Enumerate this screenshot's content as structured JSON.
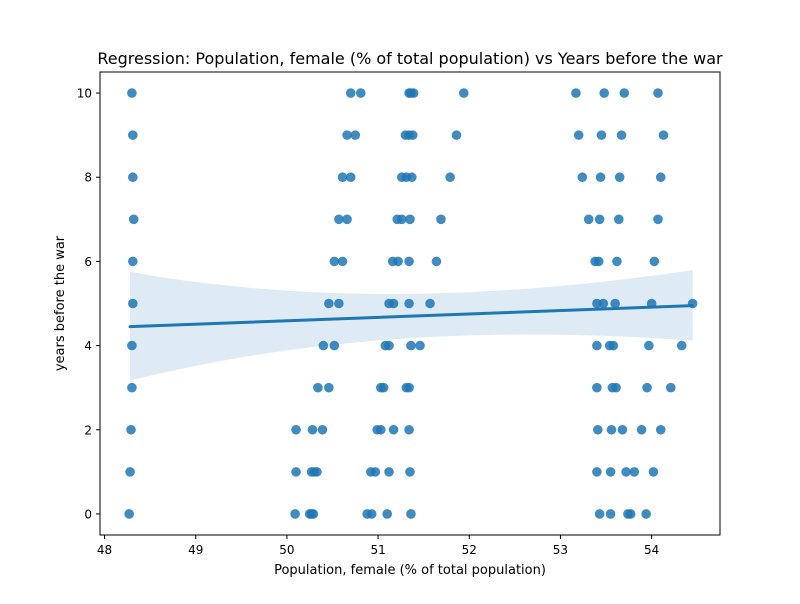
{
  "chart_data": {
    "type": "scatter",
    "title": "Regression: Population, female (% of total population) vs Years before the war",
    "xlabel": "Population, female (% of total population)",
    "ylabel": "years before the war",
    "xlim": [
      47.95,
      54.75
    ],
    "ylim": [
      -0.5,
      10.5
    ],
    "xticks": [
      48,
      49,
      50,
      51,
      52,
      53,
      54
    ],
    "yticks": [
      0,
      2,
      4,
      6,
      8,
      10
    ],
    "grid": false,
    "colors": {
      "points": "#1f77b4",
      "line": "#1f77b4",
      "band": "#1f77b4"
    },
    "regression": {
      "x": [
        48.28,
        54.45
      ],
      "y": [
        4.45,
        4.95
      ],
      "ci_upper": [
        5.75,
        5.98
      ],
      "ci_lower": [
        3.17,
        3.92
      ]
    },
    "points": [
      {
        "x": 48.3,
        "y": 10
      },
      {
        "x": 48.31,
        "y": 9
      },
      {
        "x": 48.31,
        "y": 8
      },
      {
        "x": 48.32,
        "y": 7
      },
      {
        "x": 48.31,
        "y": 6
      },
      {
        "x": 48.31,
        "y": 5
      },
      {
        "x": 48.3,
        "y": 4
      },
      {
        "x": 48.3,
        "y": 3
      },
      {
        "x": 48.29,
        "y": 2
      },
      {
        "x": 48.28,
        "y": 1
      },
      {
        "x": 48.27,
        "y": 0
      },
      {
        "x": 50.1,
        "y": 2
      },
      {
        "x": 50.28,
        "y": 2
      },
      {
        "x": 50.39,
        "y": 2
      },
      {
        "x": 50.1,
        "y": 1
      },
      {
        "x": 50.27,
        "y": 1
      },
      {
        "x": 50.3,
        "y": 1
      },
      {
        "x": 50.33,
        "y": 1
      },
      {
        "x": 50.09,
        "y": 0
      },
      {
        "x": 50.25,
        "y": 0
      },
      {
        "x": 50.27,
        "y": 0
      },
      {
        "x": 50.29,
        "y": 0
      },
      {
        "x": 50.34,
        "y": 3
      },
      {
        "x": 50.46,
        "y": 3
      },
      {
        "x": 50.4,
        "y": 4
      },
      {
        "x": 50.52,
        "y": 4
      },
      {
        "x": 50.46,
        "y": 5
      },
      {
        "x": 50.57,
        "y": 5
      },
      {
        "x": 50.52,
        "y": 6
      },
      {
        "x": 50.61,
        "y": 6
      },
      {
        "x": 50.57,
        "y": 7
      },
      {
        "x": 50.66,
        "y": 7
      },
      {
        "x": 50.61,
        "y": 8
      },
      {
        "x": 50.7,
        "y": 8
      },
      {
        "x": 50.66,
        "y": 9
      },
      {
        "x": 50.75,
        "y": 9
      },
      {
        "x": 50.7,
        "y": 10
      },
      {
        "x": 50.81,
        "y": 10
      },
      {
        "x": 50.88,
        "y": 0
      },
      {
        "x": 50.93,
        "y": 0
      },
      {
        "x": 51.1,
        "y": 0
      },
      {
        "x": 51.36,
        "y": 0
      },
      {
        "x": 50.92,
        "y": 1
      },
      {
        "x": 50.97,
        "y": 1
      },
      {
        "x": 51.12,
        "y": 1
      },
      {
        "x": 51.35,
        "y": 1
      },
      {
        "x": 50.99,
        "y": 2
      },
      {
        "x": 51.03,
        "y": 2
      },
      {
        "x": 51.17,
        "y": 2
      },
      {
        "x": 51.34,
        "y": 2
      },
      {
        "x": 51.03,
        "y": 3
      },
      {
        "x": 51.06,
        "y": 3
      },
      {
        "x": 51.31,
        "y": 3
      },
      {
        "x": 51.34,
        "y": 3
      },
      {
        "x": 51.08,
        "y": 4
      },
      {
        "x": 51.12,
        "y": 4
      },
      {
        "x": 51.36,
        "y": 4
      },
      {
        "x": 51.46,
        "y": 4
      },
      {
        "x": 51.12,
        "y": 5
      },
      {
        "x": 51.17,
        "y": 5
      },
      {
        "x": 51.34,
        "y": 5
      },
      {
        "x": 51.57,
        "y": 5
      },
      {
        "x": 51.16,
        "y": 6
      },
      {
        "x": 51.22,
        "y": 6
      },
      {
        "x": 51.34,
        "y": 6
      },
      {
        "x": 51.64,
        "y": 6
      },
      {
        "x": 51.21,
        "y": 7
      },
      {
        "x": 51.26,
        "y": 7
      },
      {
        "x": 51.35,
        "y": 7
      },
      {
        "x": 51.69,
        "y": 7
      },
      {
        "x": 51.26,
        "y": 8
      },
      {
        "x": 51.31,
        "y": 8
      },
      {
        "x": 51.37,
        "y": 8
      },
      {
        "x": 51.79,
        "y": 8
      },
      {
        "x": 51.3,
        "y": 9
      },
      {
        "x": 51.34,
        "y": 9
      },
      {
        "x": 51.38,
        "y": 9
      },
      {
        "x": 51.86,
        "y": 9
      },
      {
        "x": 51.34,
        "y": 10
      },
      {
        "x": 51.36,
        "y": 10
      },
      {
        "x": 51.39,
        "y": 10
      },
      {
        "x": 51.94,
        "y": 10
      },
      {
        "x": 53.17,
        "y": 10
      },
      {
        "x": 53.48,
        "y": 10
      },
      {
        "x": 53.7,
        "y": 10
      },
      {
        "x": 54.07,
        "y": 10
      },
      {
        "x": 53.2,
        "y": 9
      },
      {
        "x": 53.45,
        "y": 9
      },
      {
        "x": 53.67,
        "y": 9
      },
      {
        "x": 54.13,
        "y": 9
      },
      {
        "x": 53.24,
        "y": 8
      },
      {
        "x": 53.44,
        "y": 8
      },
      {
        "x": 53.65,
        "y": 8
      },
      {
        "x": 54.1,
        "y": 8
      },
      {
        "x": 53.31,
        "y": 7
      },
      {
        "x": 53.43,
        "y": 7
      },
      {
        "x": 53.64,
        "y": 7
      },
      {
        "x": 54.07,
        "y": 7
      },
      {
        "x": 53.38,
        "y": 6
      },
      {
        "x": 53.42,
        "y": 6
      },
      {
        "x": 53.62,
        "y": 6
      },
      {
        "x": 54.03,
        "y": 6
      },
      {
        "x": 53.4,
        "y": 5
      },
      {
        "x": 53.47,
        "y": 5
      },
      {
        "x": 53.6,
        "y": 5
      },
      {
        "x": 54.0,
        "y": 5
      },
      {
        "x": 54.45,
        "y": 5
      },
      {
        "x": 53.4,
        "y": 4
      },
      {
        "x": 53.54,
        "y": 4
      },
      {
        "x": 53.58,
        "y": 4
      },
      {
        "x": 53.97,
        "y": 4
      },
      {
        "x": 54.33,
        "y": 4
      },
      {
        "x": 53.4,
        "y": 3
      },
      {
        "x": 53.57,
        "y": 3
      },
      {
        "x": 53.61,
        "y": 3
      },
      {
        "x": 53.95,
        "y": 3
      },
      {
        "x": 54.21,
        "y": 3
      },
      {
        "x": 53.41,
        "y": 2
      },
      {
        "x": 53.56,
        "y": 2
      },
      {
        "x": 53.68,
        "y": 2
      },
      {
        "x": 53.89,
        "y": 2
      },
      {
        "x": 54.1,
        "y": 2
      },
      {
        "x": 53.4,
        "y": 1
      },
      {
        "x": 53.55,
        "y": 1
      },
      {
        "x": 53.72,
        "y": 1
      },
      {
        "x": 53.81,
        "y": 1
      },
      {
        "x": 54.02,
        "y": 1
      },
      {
        "x": 53.43,
        "y": 0
      },
      {
        "x": 53.55,
        "y": 0
      },
      {
        "x": 53.74,
        "y": 0
      },
      {
        "x": 53.77,
        "y": 0
      },
      {
        "x": 53.94,
        "y": 0
      }
    ]
  }
}
